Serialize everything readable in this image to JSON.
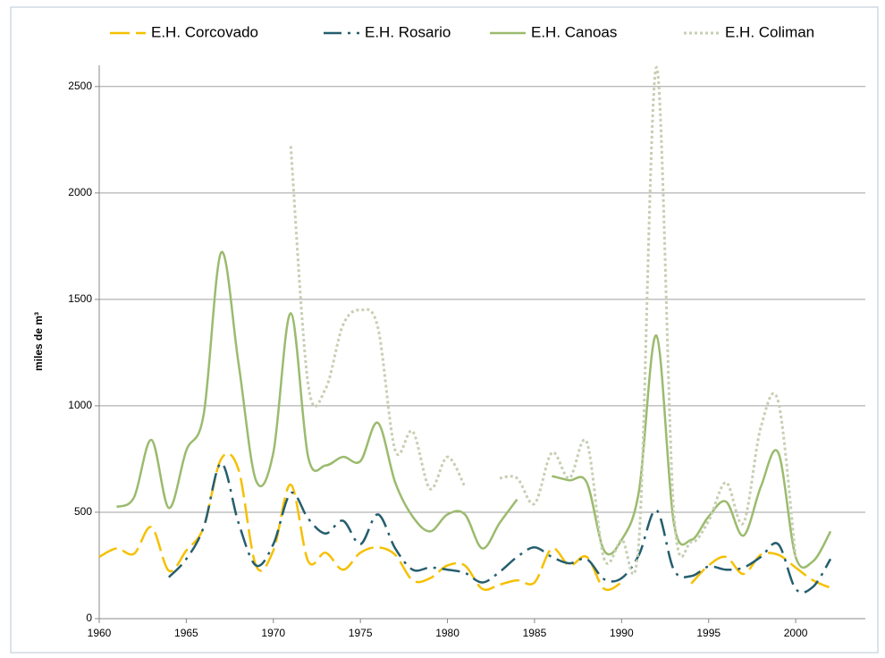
{
  "chart_data": {
    "type": "line",
    "y_label": "miles de m³",
    "x": [
      1960,
      1961,
      1962,
      1963,
      1964,
      1965,
      1966,
      1967,
      1968,
      1969,
      1970,
      1971,
      1972,
      1973,
      1974,
      1975,
      1976,
      1977,
      1978,
      1979,
      1980,
      1981,
      1982,
      1983,
      1984,
      1985,
      1986,
      1987,
      1988,
      1989,
      1990,
      1991,
      1992,
      1993,
      1994,
      1995,
      1996,
      1997,
      1998,
      1999,
      2000,
      2001,
      2002
    ],
    "series": [
      {
        "name": "E.H. Corcovado",
        "color": "#f5c000",
        "dash": "dashed",
        "values": [
          290,
          330,
          305,
          430,
          225,
          320,
          430,
          750,
          700,
          250,
          320,
          630,
          270,
          310,
          230,
          310,
          335,
          300,
          180,
          190,
          250,
          250,
          140,
          160,
          180,
          170,
          330,
          250,
          290,
          140,
          170,
          null,
          null,
          null,
          165,
          250,
          290,
          210,
          300,
          300,
          240,
          180,
          145
        ]
      },
      {
        "name": "E.H. Rosario",
        "color": "#255e6e",
        "dash": "dashdot",
        "values": [
          null,
          null,
          null,
          null,
          195,
          280,
          430,
          730,
          450,
          250,
          350,
          590,
          470,
          400,
          460,
          350,
          490,
          330,
          230,
          240,
          230,
          215,
          170,
          220,
          290,
          335,
          290,
          260,
          280,
          185,
          190,
          300,
          510,
          230,
          200,
          245,
          230,
          240,
          290,
          350,
          140,
          150,
          280
        ]
      },
      {
        "name": "E.H. Canoas",
        "color": "#9bbb6e",
        "dash": "solid",
        "values": [
          null,
          525,
          570,
          840,
          520,
          790,
          960,
          1720,
          1200,
          650,
          780,
          1435,
          760,
          720,
          760,
          740,
          920,
          640,
          480,
          410,
          490,
          490,
          330,
          450,
          560,
          null,
          670,
          650,
          640,
          320,
          370,
          600,
          1330,
          450,
          370,
          480,
          550,
          390,
          620,
          780,
          290,
          270,
          410
        ]
      },
      {
        "name": "E.H. Coliman",
        "color": "#c6cfb2",
        "dash": "dotted",
        "values": [
          null,
          null,
          null,
          null,
          null,
          null,
          null,
          null,
          null,
          null,
          null,
          2220,
          1100,
          1080,
          1380,
          1450,
          1370,
          790,
          880,
          610,
          760,
          620,
          null,
          660,
          660,
          540,
          780,
          660,
          830,
          280,
          370,
          370,
          2590,
          500,
          360,
          460,
          640,
          450,
          900,
          1020,
          280,
          null,
          null
        ]
      }
    ],
    "xlim": [
      1960,
      2004
    ],
    "xticks": [
      1960,
      1965,
      1970,
      1975,
      1980,
      1985,
      1990,
      1995,
      2000
    ],
    "ylim": [
      0,
      2600
    ],
    "yticks": [
      0,
      500,
      1000,
      1500,
      2000,
      2500
    ],
    "grid": true,
    "legend": "top"
  }
}
